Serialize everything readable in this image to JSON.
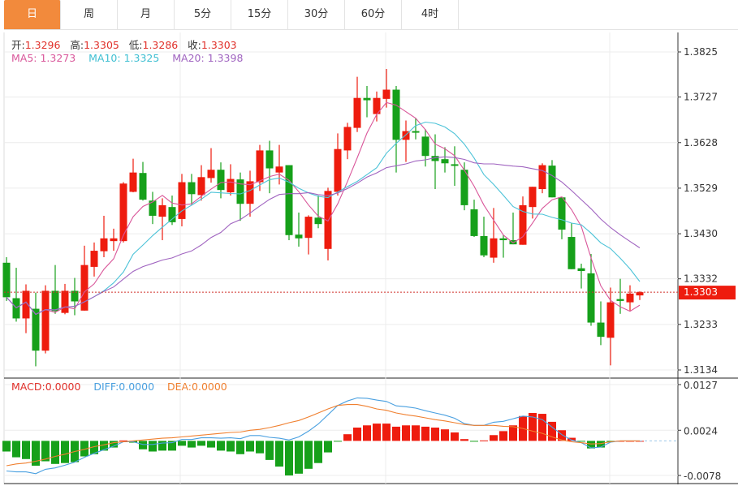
{
  "tabs": [
    {
      "label": "日",
      "active": true
    },
    {
      "label": "周",
      "active": false
    },
    {
      "label": "月",
      "active": false
    },
    {
      "label": "5分",
      "active": false
    },
    {
      "label": "15分",
      "active": false
    },
    {
      "label": "30分",
      "active": false
    },
    {
      "label": "60分",
      "active": false
    },
    {
      "label": "4时",
      "active": false
    }
  ],
  "ohlc_info": {
    "open_label": "开:",
    "open": "1.3296",
    "high_label": "高:",
    "high": "1.3305",
    "low_label": "低:",
    "low": "1.3286",
    "close_label": "收:",
    "close": "1.3303"
  },
  "ma_info": {
    "ma5_label": "MA5: ",
    "ma5": "1.3273",
    "ma10_label": "MA10: ",
    "ma10": "1.3325",
    "ma20_label": "MA20: ",
    "ma20": "1.3398"
  },
  "macd_info": {
    "macd_label": "MACD:",
    "macd": "0.0000",
    "diff_label": "DIFF:",
    "diff": "0.0000",
    "dea_label": "DEA:",
    "dea": "0.0000"
  },
  "colors": {
    "up": "#ee1c0e",
    "down": "#16a01a",
    "accent": "#f28a3c",
    "ma5": "#d9579a",
    "ma10": "#4dc3d8",
    "ma20": "#a064c0",
    "macd": "#e0302a",
    "diff": "#4aa0e0",
    "dea": "#f08030"
  },
  "chart_data": [
    {
      "type": "candlestick",
      "price_axis_ticks": [
        "1.3825",
        "1.3727",
        "1.3628",
        "1.3529",
        "1.3430",
        "1.3332",
        "1.3233",
        "1.3134"
      ],
      "ylim": [
        1.3134,
        1.3825
      ],
      "current_price": "1.3303",
      "grid": true,
      "ma_periods": [
        5,
        10,
        20
      ],
      "ohlc": [
        [
          1.3367,
          1.3379,
          1.3284,
          1.3292
        ],
        [
          1.329,
          1.3356,
          1.3239,
          1.3246
        ],
        [
          1.3246,
          1.332,
          1.3214,
          1.3306
        ],
        [
          1.3267,
          1.3302,
          1.3142,
          1.3176
        ],
        [
          1.3176,
          1.3318,
          1.317,
          1.3306
        ],
        [
          1.3306,
          1.3362,
          1.3256,
          1.3262
        ],
        [
          1.3258,
          1.3321,
          1.3255,
          1.3306
        ],
        [
          1.3306,
          1.3334,
          1.3253,
          1.3283
        ],
        [
          1.3263,
          1.3404,
          1.3263,
          1.3362
        ],
        [
          1.3358,
          1.3411,
          1.3337,
          1.3393
        ],
        [
          1.3392,
          1.3469,
          1.3379,
          1.342
        ],
        [
          1.3414,
          1.3441,
          1.3393,
          1.342
        ],
        [
          1.3414,
          1.3542,
          1.3411,
          1.3539
        ],
        [
          1.3521,
          1.3593,
          1.352,
          1.3563
        ],
        [
          1.3562,
          1.3586,
          1.3502,
          1.3504
        ],
        [
          1.3502,
          1.3521,
          1.3451,
          1.3469
        ],
        [
          1.3467,
          1.3507,
          1.3416,
          1.3492
        ],
        [
          1.3488,
          1.3513,
          1.3449,
          1.3455
        ],
        [
          1.3462,
          1.356,
          1.3446,
          1.3542
        ],
        [
          1.3542,
          1.356,
          1.3493,
          1.3516
        ],
        [
          1.3514,
          1.3579,
          1.3502,
          1.3553
        ],
        [
          1.3551,
          1.3616,
          1.3541,
          1.3569
        ],
        [
          1.3569,
          1.3585,
          1.3507,
          1.3525
        ],
        [
          1.352,
          1.3581,
          1.3513,
          1.3549
        ],
        [
          1.3548,
          1.3563,
          1.3458,
          1.3495
        ],
        [
          1.3495,
          1.3567,
          1.3467,
          1.3544
        ],
        [
          1.3542,
          1.3623,
          1.3523,
          1.3611
        ],
        [
          1.3611,
          1.3632,
          1.3518,
          1.3572
        ],
        [
          1.3563,
          1.3623,
          1.3537,
          1.3576
        ],
        [
          1.3579,
          1.3579,
          1.3416,
          1.3427
        ],
        [
          1.3428,
          1.3476,
          1.3402,
          1.342
        ],
        [
          1.3421,
          1.347,
          1.3385,
          1.3467
        ],
        [
          1.3465,
          1.3513,
          1.3442,
          1.3451
        ],
        [
          1.3397,
          1.353,
          1.3372,
          1.3523
        ],
        [
          1.3521,
          1.3648,
          1.3513,
          1.3614
        ],
        [
          1.3611,
          1.3671,
          1.3592,
          1.3662
        ],
        [
          1.366,
          1.3771,
          1.3651,
          1.3725
        ],
        [
          1.3725,
          1.3751,
          1.3683,
          1.372
        ],
        [
          1.369,
          1.3739,
          1.3674,
          1.3725
        ],
        [
          1.3723,
          1.3788,
          1.3704,
          1.3743
        ],
        [
          1.3743,
          1.3751,
          1.3563,
          1.3634
        ],
        [
          1.3634,
          1.3676,
          1.3586,
          1.3653
        ],
        [
          1.3653,
          1.3681,
          1.3635,
          1.365
        ],
        [
          1.3641,
          1.3657,
          1.3576,
          1.3599
        ],
        [
          1.3599,
          1.3646,
          1.3527,
          1.3588
        ],
        [
          1.3592,
          1.3618,
          1.3563,
          1.3583
        ],
        [
          1.3581,
          1.362,
          1.3534,
          1.3578
        ],
        [
          1.3569,
          1.3585,
          1.3481,
          1.3492
        ],
        [
          1.3483,
          1.3504,
          1.3423,
          1.3425
        ],
        [
          1.3425,
          1.3467,
          1.3379,
          1.3383
        ],
        [
          1.3378,
          1.3486,
          1.3367,
          1.342
        ],
        [
          1.342,
          1.3427,
          1.3378,
          1.3416
        ],
        [
          1.3416,
          1.3476,
          1.3407,
          1.3407
        ],
        [
          1.3406,
          1.3511,
          1.3406,
          1.3492
        ],
        [
          1.3488,
          1.3532,
          1.3463,
          1.3532
        ],
        [
          1.3527,
          1.3583,
          1.3518,
          1.3579
        ],
        [
          1.3578,
          1.359,
          1.3509,
          1.3509
        ],
        [
          1.3509,
          1.3509,
          1.3418,
          1.3439
        ],
        [
          1.3423,
          1.3453,
          1.3353,
          1.3353
        ],
        [
          1.3355,
          1.3365,
          1.3311,
          1.3349
        ],
        [
          1.3344,
          1.3386,
          1.323,
          1.3237
        ],
        [
          1.3237,
          1.3283,
          1.3188,
          1.3206
        ],
        [
          1.3204,
          1.3313,
          1.3144,
          1.3281
        ],
        [
          1.3288,
          1.3332,
          1.3256,
          1.3284
        ],
        [
          1.3281,
          1.3318,
          1.3263,
          1.33
        ],
        [
          1.3296,
          1.3305,
          1.3286,
          1.3303
        ]
      ]
    },
    {
      "type": "bar+line",
      "indicator": "MACD",
      "axis_ticks": [
        "0.0127",
        "0.0024",
        "-0.0078"
      ],
      "ylim": [
        -0.0078,
        0.0127
      ],
      "macd_hist": [
        -0.0024,
        -0.0037,
        -0.0041,
        -0.0056,
        -0.0046,
        -0.0052,
        -0.005,
        -0.0048,
        -0.0035,
        -0.003,
        -0.0022,
        -0.0015,
        0.0001,
        -0.0004,
        -0.0019,
        -0.0024,
        -0.0022,
        -0.0022,
        -0.0011,
        -0.0015,
        -0.0011,
        -0.0015,
        -0.0022,
        -0.0024,
        -0.003,
        -0.0024,
        -0.0028,
        -0.0043,
        -0.0058,
        -0.0078,
        -0.0074,
        -0.0063,
        -0.005,
        -0.0026,
        -0.0001,
        0.0015,
        0.003,
        0.0035,
        0.0039,
        0.0039,
        0.0032,
        0.0035,
        0.0035,
        0.0032,
        0.003,
        0.0026,
        0.0019,
        0.0004,
        -0.0001,
        0.0001,
        0.0013,
        0.0022,
        0.0035,
        0.0056,
        0.0063,
        0.0061,
        0.0043,
        0.0024,
        0.0007,
        -0.0001,
        -0.0017,
        -0.0015,
        -0.0002,
        0,
        0,
        0
      ],
      "diff": [
        -0.0068,
        -0.007,
        -0.007,
        -0.0074,
        -0.0064,
        -0.0061,
        -0.0055,
        -0.0048,
        -0.0037,
        -0.0028,
        -0.002,
        -0.0012,
        -0.0002,
        -0.0002,
        -0.0008,
        -0.0008,
        -0.0005,
        -0.0004,
        0.0003,
        0.0003,
        0.0007,
        0.0007,
        0.0006,
        0.0007,
        0.0005,
        0.0012,
        0.0012,
        0.0008,
        0.0006,
        0.0002,
        0.0009,
        0.0022,
        0.0038,
        0.0059,
        0.008,
        0.009,
        0.0097,
        0.0096,
        0.0092,
        0.0089,
        0.0079,
        0.0077,
        0.0074,
        0.0068,
        0.0063,
        0.0058,
        0.0051,
        0.0039,
        0.0035,
        0.0035,
        0.0042,
        0.0044,
        0.005,
        0.0056,
        0.0054,
        0.0048,
        0.0031,
        0.0014,
        0.0002,
        -0.0004,
        -0.0016,
        -0.0014,
        -0.0003,
        0,
        0,
        0
      ],
      "dea": [
        -0.0056,
        -0.0052,
        -0.005,
        -0.0046,
        -0.0041,
        -0.0035,
        -0.003,
        -0.0024,
        -0.0019,
        -0.0013,
        -0.0009,
        -0.0004,
        -0.0002,
        0.0,
        0.0002,
        0.0004,
        0.0006,
        0.0007,
        0.0009,
        0.0011,
        0.0013,
        0.0015,
        0.0017,
        0.0019,
        0.002,
        0.0024,
        0.0026,
        0.003,
        0.0035,
        0.0041,
        0.0046,
        0.0054,
        0.0063,
        0.0072,
        0.008,
        0.0082,
        0.0082,
        0.0078,
        0.0072,
        0.0069,
        0.0063,
        0.0059,
        0.0056,
        0.0052,
        0.0048,
        0.0045,
        0.0041,
        0.0037,
        0.0035,
        0.0035,
        0.0035,
        0.0033,
        0.0032,
        0.0028,
        0.0022,
        0.0017,
        0.0009,
        0.0002,
        -0.0002,
        -0.0004,
        -0.0007,
        -0.0006,
        -0.0002,
        0,
        0,
        0
      ]
    }
  ]
}
